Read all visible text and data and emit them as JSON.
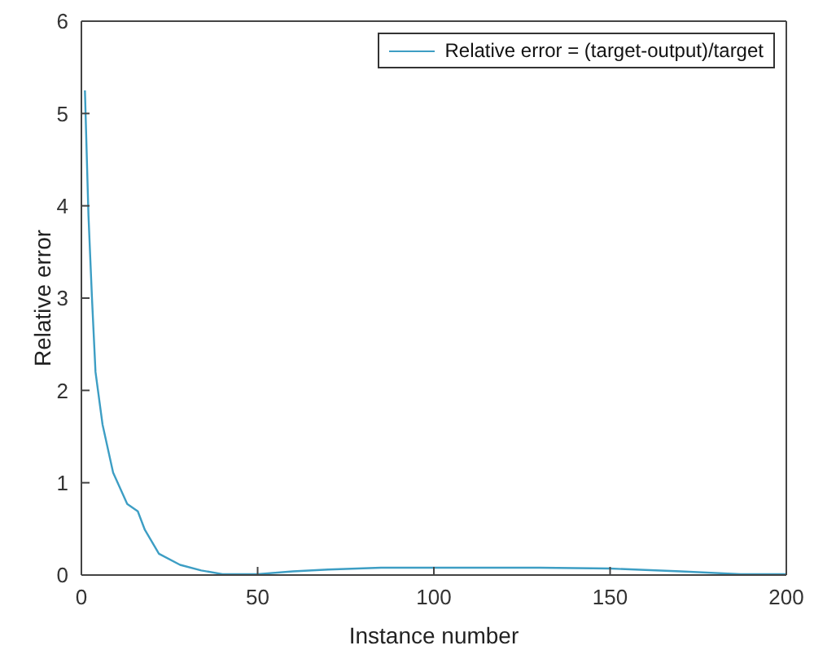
{
  "chart_data": {
    "type": "line",
    "xlabel": "Instance number",
    "ylabel": "Relative error",
    "x": [
      1,
      2,
      3,
      4,
      6,
      9,
      13,
      16,
      18,
      22,
      28,
      34,
      40,
      50,
      60,
      70,
      85,
      100,
      130,
      150,
      170,
      187,
      200
    ],
    "series": [
      {
        "name": "Relative error = (target-output)/target",
        "color": "#3d9ec4",
        "values": [
          5.25,
          3.9,
          3.0,
          2.2,
          1.63,
          1.11,
          0.77,
          0.69,
          0.49,
          0.23,
          0.11,
          0.05,
          0.01,
          0.01,
          0.04,
          0.06,
          0.08,
          0.08,
          0.08,
          0.07,
          0.04,
          0.01,
          0.01
        ]
      }
    ],
    "xlim": [
      0,
      200
    ],
    "xticks": [
      0,
      50,
      100,
      150,
      200
    ],
    "ylim": [
      0,
      6
    ],
    "yticks": [
      0,
      1,
      2,
      3,
      4,
      5,
      6
    ],
    "grid": false,
    "legend": "top right",
    "marker": "none",
    "line_style": "solid"
  }
}
